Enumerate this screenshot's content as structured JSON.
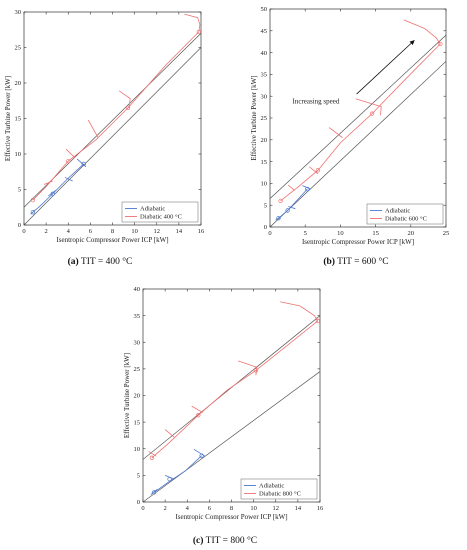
{
  "colors": {
    "adiabatic": "#4a78d0",
    "diabatic": "#f07070",
    "reference": "#555555",
    "axis": "#333333"
  },
  "chart_data": [
    {
      "type": "line",
      "caption_letter": "(a)",
      "caption_text": "TIT = 400 °C",
      "xlabel": "Isentropic Compressor Power ICP [kW]",
      "ylabel": "Effective Turbine Power [kW]",
      "xlim": [
        0,
        16
      ],
      "ylim": [
        0,
        30
      ],
      "xticks": [
        0,
        2,
        4,
        6,
        8,
        10,
        12,
        14,
        16
      ],
      "yticks": [
        0,
        5,
        10,
        15,
        20,
        25,
        30
      ],
      "grid": false,
      "legend_position": "bottom-right",
      "series": [
        {
          "name": "Adiabatic",
          "color": "#4a78d0",
          "lines": [
            [
              [
                0.8,
                1.8
              ],
              [
                1.4,
                2.6
              ],
              [
                2.6,
                4.4
              ],
              [
                4.0,
                6.6
              ],
              [
                5.4,
                8.6
              ]
            ],
            [
              [
                0.6,
                1.5
              ],
              [
                1.0,
                2.1
              ]
            ],
            [
              [
                2.2,
                4.1
              ],
              [
                2.9,
                4.9
              ]
            ],
            [
              [
                3.7,
                6.7
              ],
              [
                4.4,
                6.2
              ]
            ],
            [
              [
                4.8,
                9.3
              ],
              [
                5.6,
                8.2
              ]
            ]
          ],
          "points": [
            [
              0.8,
              1.8
            ],
            [
              2.6,
              4.4
            ],
            [
              5.4,
              8.6
            ]
          ]
        },
        {
          "name": "Diabatic 400 °C",
          "color": "#f07070",
          "lines": [
            [
              [
                0.8,
                3.5
              ],
              [
                2.0,
                5.4
              ],
              [
                4.0,
                9.0
              ],
              [
                6.5,
                12.0
              ],
              [
                9.4,
                16.5
              ],
              [
                12.8,
                22.5
              ],
              [
                15.8,
                27.2
              ]
            ],
            [
              [
                15.8,
                27.2
              ],
              [
                15.9,
                28.2
              ],
              [
                15.7,
                29.2
              ],
              [
                14.5,
                29.7
              ]
            ],
            [
              [
                1.8,
                5.7
              ],
              [
                2.6,
                6.2
              ]
            ],
            [
              [
                3.8,
                10.7
              ],
              [
                4.6,
                9.5
              ]
            ],
            [
              [
                5.8,
                14.8
              ],
              [
                6.7,
                12.3
              ]
            ],
            [
              [
                8.6,
                18.9
              ],
              [
                9.6,
                17.8
              ],
              [
                9.5,
                16.5
              ]
            ]
          ],
          "points": [
            [
              0.8,
              3.5
            ],
            [
              4.0,
              9.0
            ],
            [
              9.4,
              16.5
            ],
            [
              15.8,
              27.2
            ]
          ]
        }
      ],
      "reference_lines": [
        [
          [
            0,
            0
          ],
          [
            16,
            25.0
          ]
        ],
        [
          [
            0,
            2.5
          ],
          [
            16,
            27.0
          ]
        ]
      ],
      "annotations": []
    },
    {
      "type": "line",
      "caption_letter": "(b)",
      "caption_text": "TIT = 600 °C",
      "xlabel": "Isentropic Compressor Power ICP [kW]",
      "ylabel": "Effective Turbine Power [kW]",
      "xlim": [
        0,
        25
      ],
      "ylim": [
        0,
        50
      ],
      "xticks": [
        0,
        5,
        10,
        15,
        20,
        25
      ],
      "yticks": [
        0,
        5,
        10,
        15,
        20,
        25,
        30,
        35,
        40,
        45,
        50
      ],
      "grid": false,
      "legend_position": "bottom-right",
      "series": [
        {
          "name": "Adiabatic",
          "color": "#4a78d0",
          "lines": [
            [
              [
                1.2,
                2.0
              ],
              [
                2.5,
                3.8
              ],
              [
                4.0,
                6.4
              ],
              [
                5.3,
                8.7
              ]
            ],
            [
              [
                0.8,
                1.6
              ],
              [
                1.7,
                2.6
              ]
            ],
            [
              [
                2.6,
                4.7
              ],
              [
                3.6,
                4.2
              ]
            ],
            [
              [
                4.6,
                9.5
              ],
              [
                5.8,
                8.7
              ]
            ]
          ],
          "points": [
            [
              1.2,
              2.0
            ],
            [
              2.5,
              3.8
            ],
            [
              5.3,
              8.7
            ]
          ]
        },
        {
          "name": "Diabatic 600 °C",
          "color": "#f07070",
          "lines": [
            [
              [
                1.5,
                6.0
              ],
              [
                4.0,
                9.2
              ],
              [
                6.8,
                13.0
              ],
              [
                10.0,
                19.3
              ],
              [
                14.5,
                26.0
              ],
              [
                19.0,
                33.5
              ],
              [
                24.2,
                42.0
              ]
            ],
            [
              [
                24.2,
                42.0
              ],
              [
                23.6,
                43.4
              ],
              [
                22.0,
                45.5
              ],
              [
                19.0,
                47.5
              ]
            ],
            [
              [
                2.6,
                9.6
              ],
              [
                3.5,
                8.4
              ]
            ],
            [
              [
                5.6,
                13.8
              ],
              [
                6.8,
                12.2
              ]
            ],
            [
              [
                8.4,
                22.8
              ],
              [
                10.3,
                20.5
              ]
            ],
            [
              [
                12.2,
                29.4
              ],
              [
                15.8,
                27.6
              ],
              [
                15.7,
                25.6
              ]
            ]
          ],
          "points": [
            [
              1.5,
              6.0
            ],
            [
              6.8,
              13.0
            ],
            [
              14.5,
              26.0
            ],
            [
              24.2,
              42.0
            ]
          ]
        }
      ],
      "reference_lines": [
        [
          [
            0,
            0
          ],
          [
            25,
            38.0
          ]
        ],
        [
          [
            0,
            6.5
          ],
          [
            25,
            44.0
          ]
        ]
      ],
      "annotations": [
        {
          "text": "Increasing speed",
          "x": 3.2,
          "y": 28.3
        },
        {
          "arrow_from": [
            12.3,
            30.5
          ],
          "arrow_to": [
            20.5,
            42.8
          ]
        }
      ]
    },
    {
      "type": "line",
      "caption_letter": "(c)",
      "caption_text": "TIT = 800 °C",
      "xlabel": "Isentropic Compressor Power ICP [kW]",
      "ylabel": "Effective Turbine Power [kW]",
      "xlim": [
        0,
        16
      ],
      "ylim": [
        0,
        40
      ],
      "xticks": [
        0,
        2,
        4,
        6,
        8,
        10,
        12,
        14,
        16
      ],
      "yticks": [
        0,
        5,
        10,
        15,
        20,
        25,
        30,
        35,
        40
      ],
      "grid": false,
      "legend_position": "bottom-right",
      "series": [
        {
          "name": "Adiabatic",
          "color": "#4a78d0",
          "lines": [
            [
              [
                1.0,
                1.8
              ],
              [
                2.2,
                3.6
              ],
              [
                3.8,
                5.8
              ],
              [
                5.3,
                8.7
              ]
            ],
            [
              [
                0.7,
                1.4
              ],
              [
                1.3,
                2.4
              ]
            ],
            [
              [
                2.0,
                5.0
              ],
              [
                2.8,
                4.3
              ]
            ],
            [
              [
                4.6,
                9.9
              ],
              [
                5.6,
                8.6
              ]
            ]
          ],
          "points": [
            [
              1.0,
              1.8
            ],
            [
              2.4,
              4.3
            ],
            [
              5.3,
              8.7
            ]
          ]
        },
        {
          "name": "Diabatic 800 °C",
          "color": "#f07070",
          "lines": [
            [
              [
                0.8,
                8.3
              ],
              [
                2.3,
                11.0
              ],
              [
                5.0,
                16.3
              ],
              [
                7.6,
                21.0
              ],
              [
                10.2,
                24.7
              ],
              [
                12.8,
                29.0
              ],
              [
                15.8,
                34.0
              ]
            ],
            [
              [
                15.8,
                34.0
              ],
              [
                15.5,
                35.0
              ],
              [
                14.2,
                36.8
              ],
              [
                12.4,
                37.6
              ]
            ],
            [
              [
                0.5,
                9.5
              ],
              [
                1.2,
                8.6
              ]
            ],
            [
              [
                2.0,
                13.6
              ],
              [
                2.8,
                12.2
              ]
            ],
            [
              [
                4.4,
                18.0
              ],
              [
                5.4,
                16.8
              ]
            ],
            [
              [
                8.6,
                26.5
              ],
              [
                10.3,
                25.3
              ],
              [
                10.2,
                23.8
              ]
            ]
          ],
          "points": [
            [
              0.8,
              8.3
            ],
            [
              5.0,
              16.3
            ],
            [
              10.2,
              24.7
            ],
            [
              15.8,
              34.0
            ]
          ]
        }
      ],
      "reference_lines": [
        [
          [
            0,
            0
          ],
          [
            16,
            24.5
          ]
        ],
        [
          [
            0,
            8.0
          ],
          [
            16,
            35.0
          ]
        ]
      ],
      "annotations": []
    }
  ]
}
